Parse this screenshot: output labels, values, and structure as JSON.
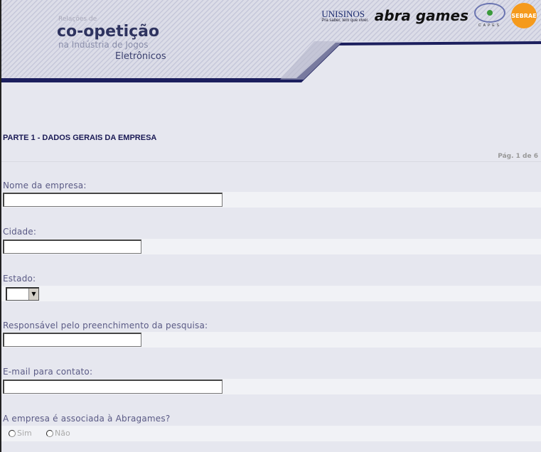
{
  "header": {
    "logo": {
      "line1": "Relações de",
      "line2": "co-opetição",
      "line3": "na Indústria de Jogos",
      "line4": "Eletrônicos"
    },
    "partners": {
      "unisinos": "UNISINOS",
      "unisinos_tagline": "Pra saber, tem que viver.",
      "abragames": "abra games",
      "capes": "CAPES",
      "sebrae": "SEBRAE"
    },
    "colors": {
      "navy": "#1c1f5e",
      "background": "#e6e7ef"
    }
  },
  "section": {
    "title": "PARTE 1 - DADOS GERAIS DA EMPRESA",
    "page": "Pág. 1 de 6"
  },
  "fields": [
    {
      "label": "Nome da empresa:",
      "value": ""
    },
    {
      "label": "Cidade:",
      "value": ""
    },
    {
      "label": "Estado:",
      "value": ""
    },
    {
      "label": "Responsável pelo preenchimento da pesquisa:",
      "value": ""
    },
    {
      "label": "E-mail para contato:",
      "value": ""
    },
    {
      "label": "A empresa é associada à Abragames?",
      "options": [
        "Sim",
        "Não"
      ]
    }
  ]
}
